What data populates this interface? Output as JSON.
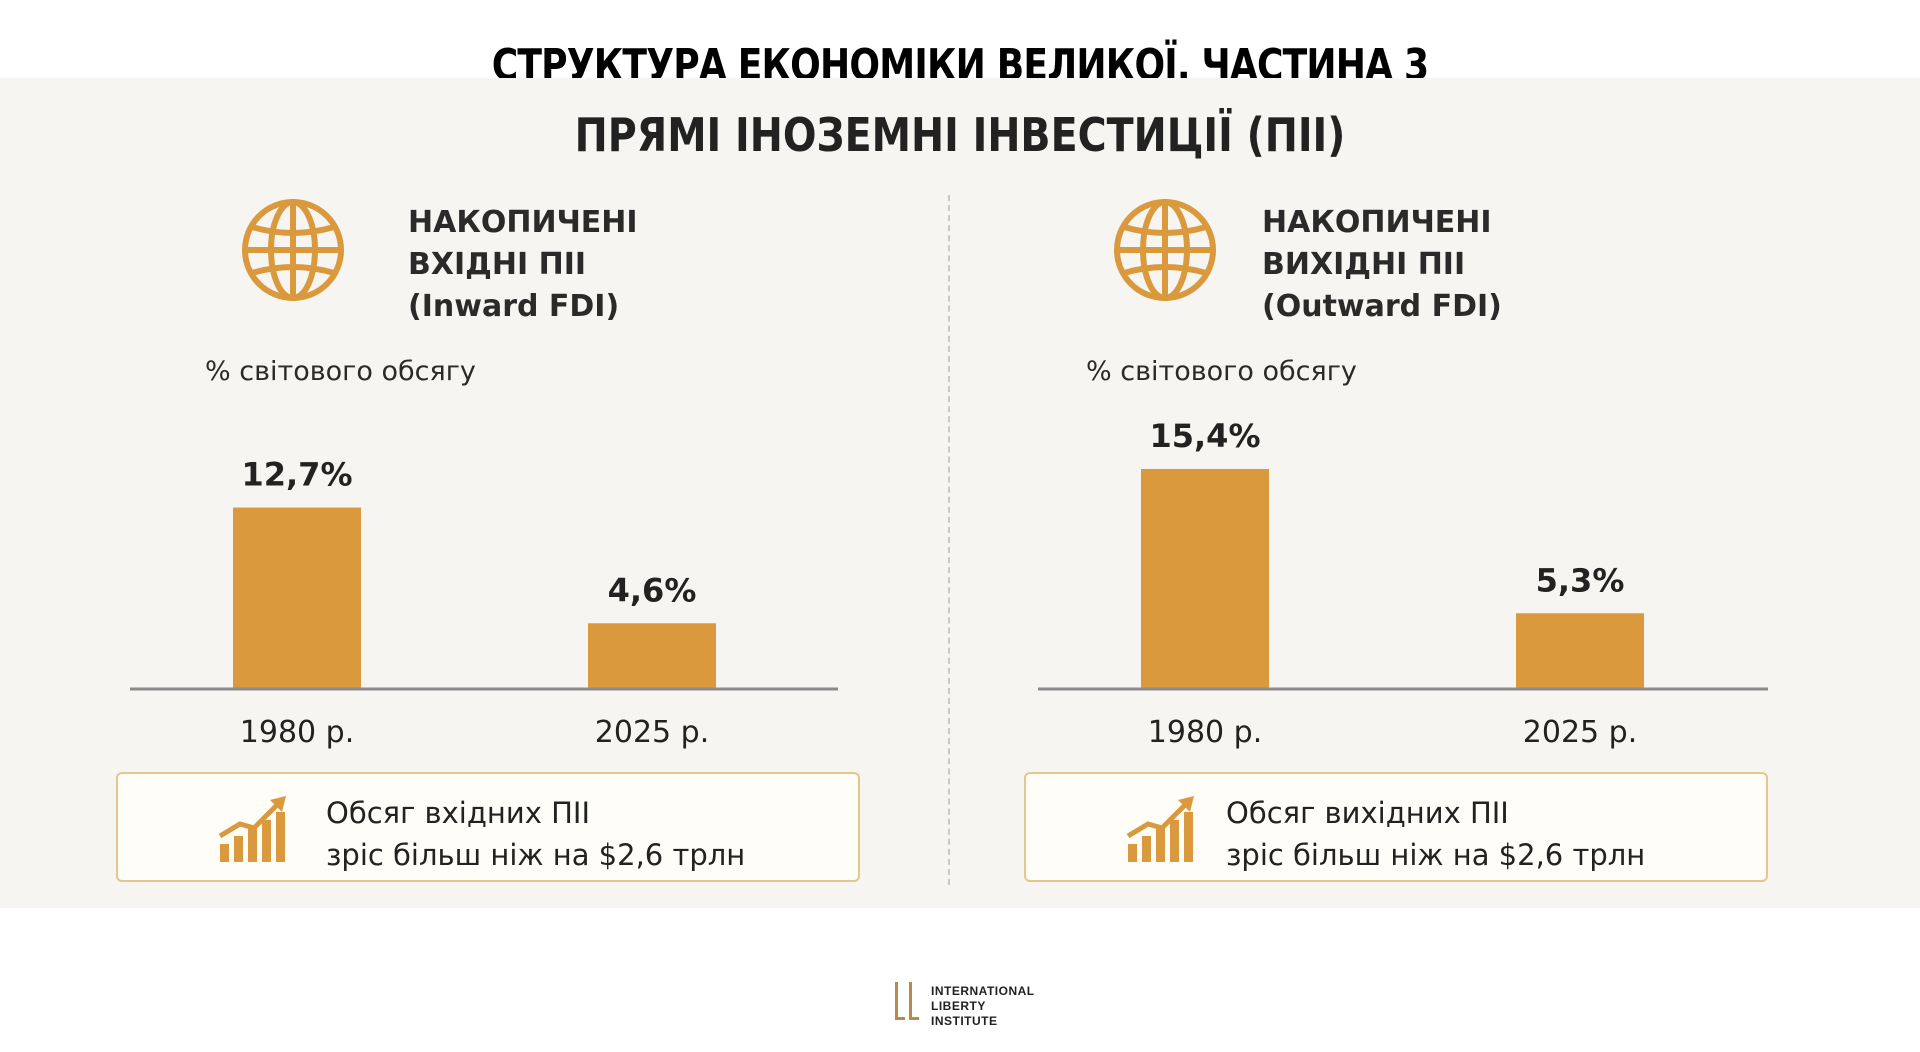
{
  "title": "СТРУКТУРА ЕКОНОМІКИ ВЕЛИКОЇ. ЧАСТИНА 3",
  "subtitle": "ПРЯМІ ІНОЗЕМНІ ІНВЕСТИЦІЇ (ПІІ)",
  "accent_color": "#d9993c",
  "panels": [
    {
      "icon": "globe-icon",
      "heading": [
        "НАКОПИЧЕНІ",
        "ВХІДНІ ПІІ",
        "(Inward FDI)"
      ],
      "unit": "% світового обсягу",
      "value_labels": [
        "12,7%",
        "4,6%"
      ],
      "note": [
        "Обсяг вхідних ПІІ",
        "зріс більш ніж на $2,6 трлн"
      ],
      "note_icon": "growth-chart-icon"
    },
    {
      "icon": "globe-icon",
      "heading": [
        "НАКОПИЧЕНІ",
        "ВИХІДНІ ПІІ",
        "(Outward FDI)"
      ],
      "unit": "% світового обсягу",
      "value_labels": [
        "15,4%",
        "5,3%"
      ],
      "note": [
        "Обсяг вихідних ПІІ",
        "зріс більш ніж на $2,6 трлн"
      ],
      "note_icon": "growth-chart-icon"
    }
  ],
  "chart_data": [
    {
      "type": "bar",
      "title": "НАКОПИЧЕНІ ВХІДНІ ПІІ (Inward FDI)",
      "ylabel": "% світового обсягу",
      "categories": [
        "1980 р.",
        "2025 р."
      ],
      "values": [
        12.7,
        4.6
      ],
      "ylim": [
        0,
        15.4
      ],
      "grid": false
    },
    {
      "type": "bar",
      "title": "НАКОПИЧЕНІ ВИХІДНІ ПІІ (Outward FDI)",
      "ylabel": "% світового обсягу",
      "categories": [
        "1980 р.",
        "2025 р."
      ],
      "values": [
        15.4,
        5.3
      ],
      "ylim": [
        0,
        15.4
      ],
      "grid": false
    }
  ],
  "logo": {
    "line1": "INTERNATIONAL",
    "line2": "LIBERTY INSTITUTE"
  }
}
